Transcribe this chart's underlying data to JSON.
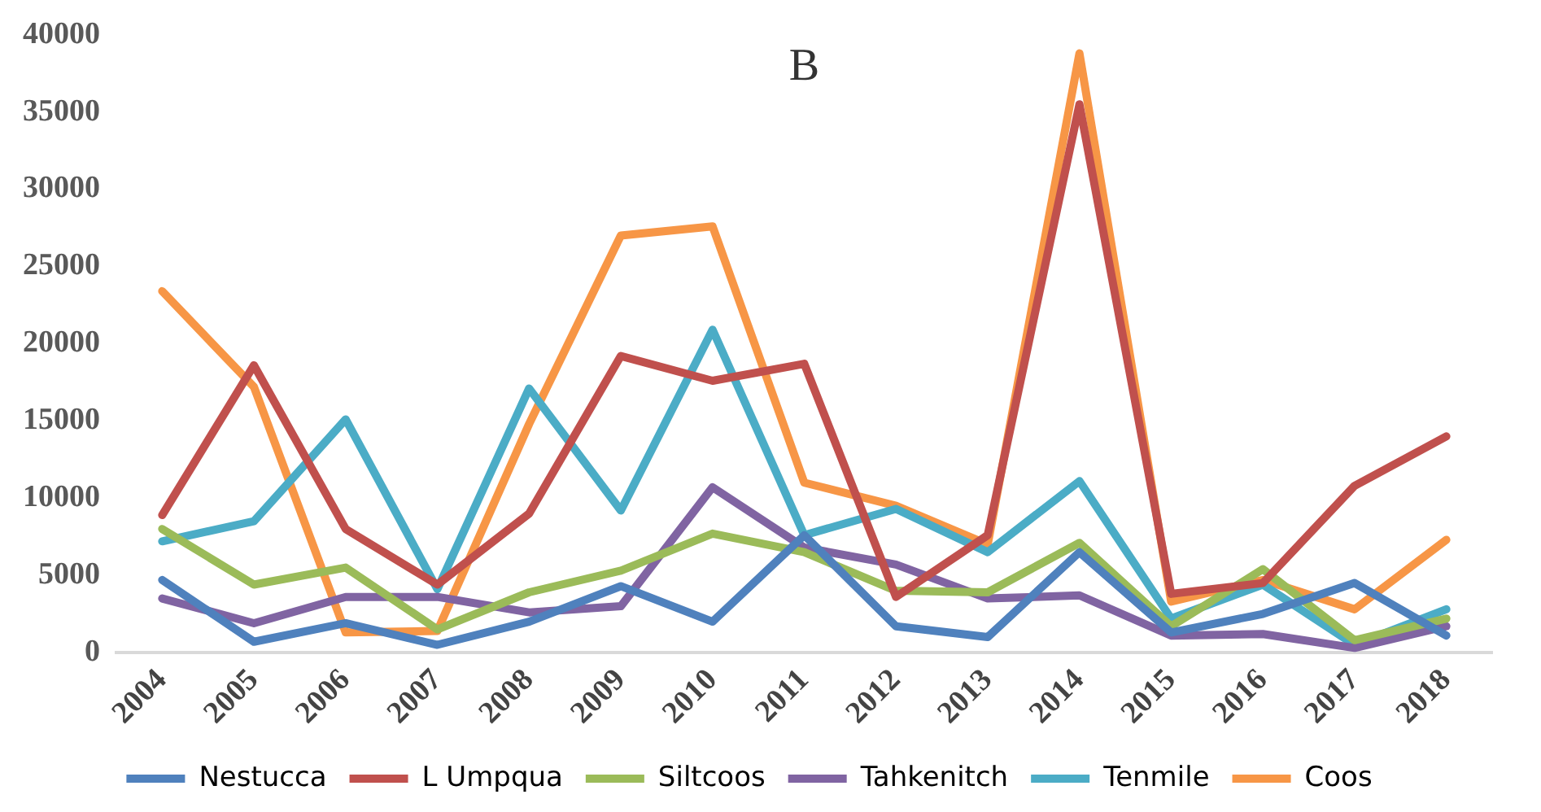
{
  "chart_data": {
    "type": "line",
    "title": "B",
    "categories": [
      "2004",
      "2005",
      "2006",
      "2007",
      "2008",
      "2009",
      "2010",
      "2011",
      "2012",
      "2013",
      "2014",
      "2015",
      "2016",
      "2017",
      "2018"
    ],
    "series": [
      {
        "name": "Nestucca",
        "color": "#4f81bd",
        "values": [
          4700,
          700,
          1900,
          500,
          2000,
          4300,
          2000,
          7600,
          1700,
          1000,
          6500,
          1300,
          2500,
          4500,
          1100
        ]
      },
      {
        "name": "L Umpqua",
        "color": "#c0504d",
        "values": [
          8900,
          18600,
          8000,
          4400,
          9000,
          19200,
          17600,
          18700,
          3600,
          7600,
          35500,
          3800,
          4500,
          10800,
          14000
        ]
      },
      {
        "name": "Siltcoos",
        "color": "#9bbb59",
        "values": [
          8000,
          4400,
          5500,
          1500,
          3900,
          5300,
          7700,
          6500,
          4000,
          3900,
          7100,
          1700,
          5400,
          800,
          2200
        ]
      },
      {
        "name": "Tahkenitch",
        "color": "#8064a2",
        "values": [
          3500,
          1900,
          3600,
          3600,
          2600,
          3000,
          10700,
          6800,
          5700,
          3500,
          3700,
          1100,
          1200,
          300,
          1700
        ]
      },
      {
        "name": "Tenmile",
        "color": "#4bacc6",
        "values": [
          7200,
          8500,
          15100,
          4100,
          17100,
          9200,
          20900,
          7600,
          9300,
          6500,
          11100,
          2200,
          4400,
          500,
          2800
        ]
      },
      {
        "name": "Coos",
        "color": "#f79646",
        "values": [
          23400,
          17200,
          1300,
          1400,
          14800,
          27000,
          27600,
          11000,
          9500,
          7000,
          38800,
          3300,
          4700,
          2800,
          7300
        ]
      }
    ],
    "ylim": [
      0,
      40000
    ],
    "yticks": [
      0,
      5000,
      10000,
      15000,
      20000,
      25000,
      30000,
      35000,
      40000
    ],
    "grid": false,
    "legend": "bottom",
    "marker": "none",
    "line_style": "solid"
  }
}
